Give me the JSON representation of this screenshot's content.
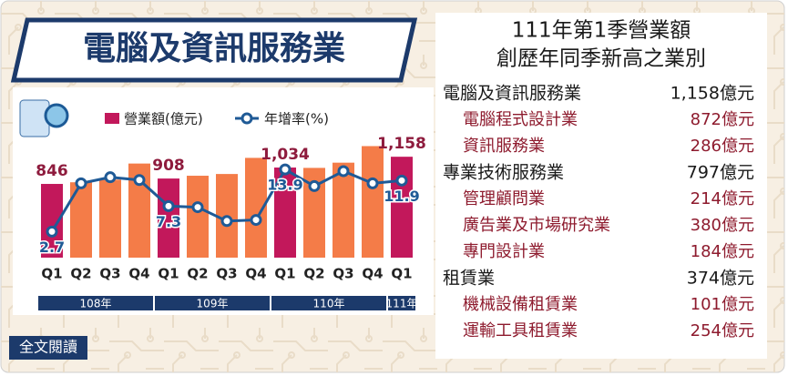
{
  "header": {
    "title": "電腦及資訊服務業"
  },
  "chart_data": {
    "type": "bar",
    "categories": [
      "Q1",
      "Q2",
      "Q3",
      "Q4",
      "Q1",
      "Q2",
      "Q3",
      "Q4",
      "Q1",
      "Q2",
      "Q3",
      "Q4",
      "Q1"
    ],
    "years": [
      "108年",
      "108年",
      "108年",
      "108年",
      "109年",
      "109年",
      "109年",
      "109年",
      "110年",
      "110年",
      "110年",
      "110年",
      "111年"
    ],
    "series": [
      {
        "name": "營業額(億元)",
        "color": "#c2185b",
        "point_colors": [
          "#c2185b",
          "#f47c48",
          "#f47c48",
          "#f47c48",
          "#c2185b",
          "#f47c48",
          "#f47c48",
          "#f47c48",
          "#c2185b",
          "#f47c48",
          "#f47c48",
          "#f47c48",
          "#c2185b"
        ],
        "values": [
          846,
          865,
          895,
          1080,
          908,
          940,
          960,
          1145,
          1034,
          1030,
          1090,
          1280,
          1158
        ],
        "value_labels": [
          "846",
          null,
          null,
          null,
          "908",
          null,
          null,
          null,
          "1,034",
          null,
          null,
          null,
          "1,158"
        ]
      },
      {
        "name": "年增率(%)",
        "color": "#1f5a96",
        "type": "line",
        "axis": "y2",
        "values": [
          2.7,
          11.4,
          12.5,
          12.0,
          7.3,
          7.1,
          4.6,
          4.8,
          13.9,
          10.9,
          13.6,
          11.4,
          11.9
        ],
        "value_labels": [
          "2.7",
          null,
          null,
          null,
          "7.3",
          null,
          null,
          null,
          "13.9",
          null,
          null,
          null,
          "11.9"
        ]
      }
    ],
    "ylim": [
      0,
      1400
    ],
    "y2lim": [
      -2,
      20
    ]
  },
  "side_panel": {
    "title": [
      "111年第1季營業額",
      "創歷年同季新高之業別"
    ],
    "groups": [
      {
        "name": "電腦及資訊服務業",
        "value": "1,158億元",
        "items": [
          {
            "name": "電腦程式設計業",
            "value": "872億元"
          },
          {
            "name": "資訊服務業",
            "value": "286億元"
          }
        ]
      },
      {
        "name": "專業技術服務業",
        "value": "797億元",
        "items": [
          {
            "name": "管理顧問業",
            "value": "214億元"
          },
          {
            "name": "廣告業及市場研究業",
            "value": "380億元"
          },
          {
            "name": "專門設計業",
            "value": "184億元"
          }
        ]
      },
      {
        "name": "租賃業",
        "value": "374億元",
        "items": [
          {
            "name": "機械設備租賃業",
            "value": "101億元"
          },
          {
            "name": "運輸工具租賃業",
            "value": "254億元"
          }
        ]
      }
    ]
  },
  "footer": {
    "button": "全文閱讀"
  }
}
